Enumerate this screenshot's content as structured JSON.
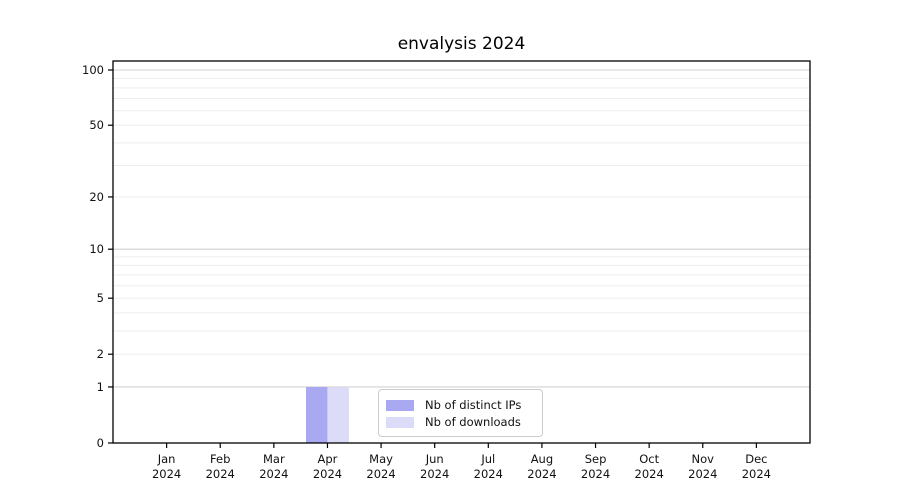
{
  "chart_data": {
    "type": "bar",
    "title": "envalysis 2024",
    "xlabel": "",
    "ylabel": "",
    "categories": [
      "Jan",
      "Feb",
      "Mar",
      "Apr",
      "May",
      "Jun",
      "Jul",
      "Aug",
      "Sep",
      "Oct",
      "Nov",
      "Dec"
    ],
    "x_year_label": "2024",
    "series": [
      {
        "name": "Nb of distinct IPs",
        "color": "#a9a9f3",
        "values": [
          0,
          0,
          0,
          1,
          0,
          0,
          0,
          0,
          0,
          0,
          0,
          0
        ]
      },
      {
        "name": "Nb of downloads",
        "color": "#dcdcf9",
        "values": [
          0,
          0,
          0,
          1,
          0,
          0,
          0,
          0,
          0,
          0,
          0,
          0
        ]
      }
    ],
    "y_axis": {
      "scale": "log1p",
      "ylim": [
        0,
        100
      ],
      "tick_labels": [
        0,
        1,
        2,
        5,
        10,
        20,
        50,
        100
      ],
      "major_gridlines": [
        1,
        10,
        100
      ],
      "minor_gridlines": [
        2,
        3,
        4,
        5,
        6,
        7,
        8,
        9,
        20,
        30,
        40,
        50,
        60,
        70,
        80,
        90
      ],
      "grid": true
    },
    "legend": {
      "position": "inside-bottom-center",
      "entries": [
        "Nb of distinct IPs",
        "Nb of downloads"
      ]
    },
    "colors": {
      "axis": "#000000",
      "major_grid": "#d2d2d2",
      "minor_grid": "#ededed",
      "text": "#111111",
      "background": "#ffffff"
    }
  }
}
